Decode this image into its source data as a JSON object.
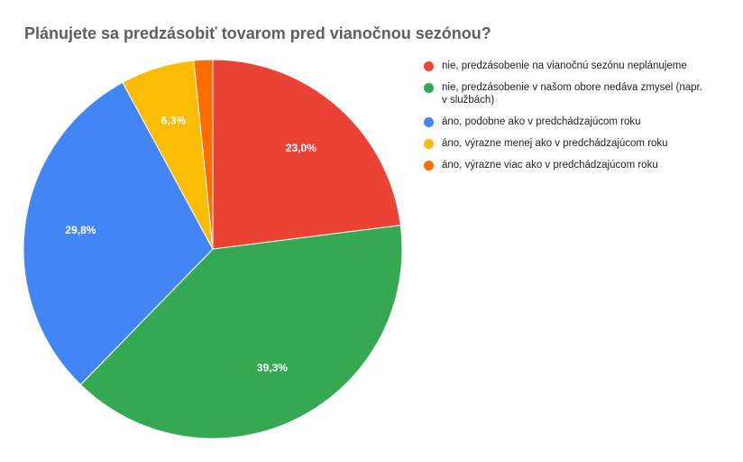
{
  "chart_data": {
    "type": "pie",
    "title": "Plánujete sa predzásobiť tovarom pred vianočnou sezónou?",
    "categories": [
      "nie, predzásobenie na vianočnú sezónu neplánujeme",
      "nie, predzásobenie v našom obore nedáva zmysel (napr. v službách)",
      "áno, podobne ako v predchádzajúcom roku",
      "áno, výrazne menej ako v predchádzajúcom roku",
      "áno, výrazne viac ako v predchádzajúcom roku"
    ],
    "values": [
      23.0,
      39.3,
      29.8,
      6.3,
      1.6
    ],
    "data_labels": [
      "23,0%",
      "39,3%",
      "29,8%",
      "6,3%",
      ""
    ],
    "colors": [
      "#ea4335",
      "#34a853",
      "#4285f4",
      "#fbbc04",
      "#ff6d01"
    ],
    "legend_position": "right",
    "start_angle": "top, clockwise"
  }
}
